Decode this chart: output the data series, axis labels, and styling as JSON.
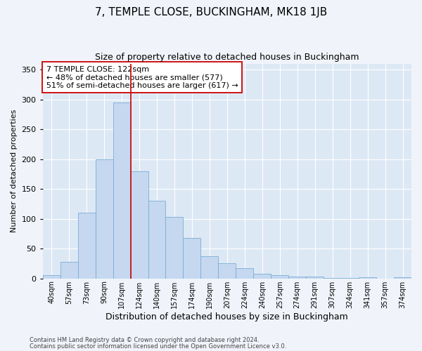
{
  "title1": "7, TEMPLE CLOSE, BUCKINGHAM, MK18 1JB",
  "title2": "Size of property relative to detached houses in Buckingham",
  "xlabel": "Distribution of detached houses by size in Buckingham",
  "ylabel": "Number of detached properties",
  "categories": [
    "40sqm",
    "57sqm",
    "73sqm",
    "90sqm",
    "107sqm",
    "124sqm",
    "140sqm",
    "157sqm",
    "174sqm",
    "190sqm",
    "207sqm",
    "224sqm",
    "240sqm",
    "257sqm",
    "274sqm",
    "291sqm",
    "307sqm",
    "324sqm",
    "341sqm",
    "357sqm",
    "374sqm"
  ],
  "bar_heights": [
    5,
    28,
    110,
    200,
    295,
    180,
    130,
    103,
    68,
    37,
    25,
    17,
    8,
    5,
    3,
    3,
    1,
    1,
    2,
    0,
    2
  ],
  "bar_color": "#c5d8f0",
  "bar_edge_color": "#7aadd4",
  "vline_x": 4.5,
  "vline_color": "#cc0000",
  "ylim": [
    0,
    360
  ],
  "yticks": [
    0,
    50,
    100,
    150,
    200,
    250,
    300,
    350
  ],
  "annotation_text": "7 TEMPLE CLOSE: 122sqm\n← 48% of detached houses are smaller (577)\n51% of semi-detached houses are larger (617) →",
  "annotation_box_color": "#ffffff",
  "annotation_box_edge": "#cc0000",
  "footer1": "Contains HM Land Registry data © Crown copyright and database right 2024.",
  "footer2": "Contains public sector information licensed under the Open Government Licence v3.0.",
  "bg_color": "#dde8f5",
  "fig_bg_color": "#f0f4fa",
  "grid_color": "#ffffff",
  "title1_fontsize": 11,
  "title2_fontsize": 9,
  "ylabel_fontsize": 8,
  "xlabel_fontsize": 9,
  "tick_fontsize": 7,
  "annot_fontsize": 8
}
